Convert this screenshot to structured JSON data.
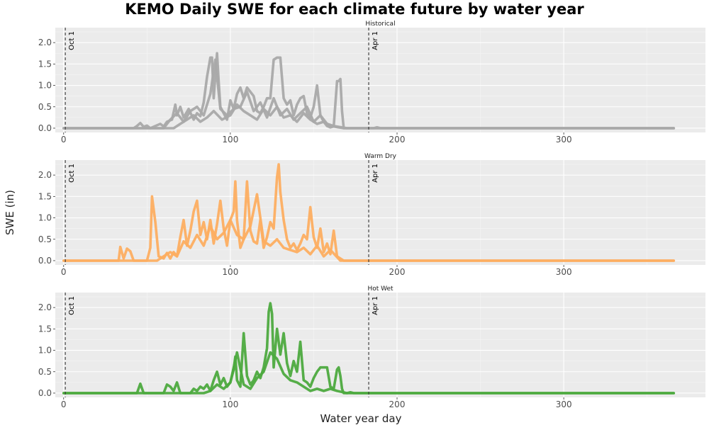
{
  "chart_data": {
    "type": "line",
    "title": "KEMO Daily SWE for each climate future by water year",
    "xlabel": "Water year day",
    "ylabel": "SWE (in)",
    "xlim": [
      -5,
      385
    ],
    "ylim": [
      -0.1,
      2.35
    ],
    "x_ticks": [
      0,
      100,
      200,
      300
    ],
    "y_ticks": [
      0.0,
      0.5,
      1.0,
      1.5,
      2.0
    ],
    "x_tick_labels": [
      "0",
      "100",
      "200",
      "300"
    ],
    "y_tick_labels": [
      "0.0",
      "0.5",
      "1.0",
      "1.5",
      "2.0"
    ],
    "grid": true,
    "reference_lines": [
      {
        "label": "Oct 1",
        "x": 1
      },
      {
        "label": "Apr 1",
        "x": 183
      }
    ],
    "panels": [
      {
        "name": "Historical",
        "color": "#a9a9a9",
        "series": [
          {
            "x": [
              0,
              42,
              44,
              46,
              48,
              50,
              52,
              58,
              60,
              62,
              65,
              67,
              68,
              70,
              72,
              75,
              78,
              80,
              82,
              84,
              86,
              88,
              89,
              90,
              92,
              93,
              94,
              96,
              98,
              100,
              102,
              104,
              106,
              108,
              110,
              112,
              114,
              116,
              118,
              120,
              122,
              124,
              126,
              128,
              130,
              132,
              134,
              136,
              138,
              140,
              142,
              144,
              146,
              148,
              150,
              152,
              154,
              156,
              158,
              160,
              162,
              164,
              165,
              166,
              167,
              168,
              170,
              174,
              178,
              186,
              188,
              190,
              366
            ],
            "y": [
              0,
              0,
              0.05,
              0.12,
              0.03,
              0.06,
              0,
              0.1,
              0.04,
              0.15,
              0.2,
              0.55,
              0.3,
              0.5,
              0.25,
              0.45,
              0.2,
              0.35,
              0.28,
              0.6,
              1.2,
              1.65,
              1.65,
              0.7,
              1.75,
              1.1,
              0.5,
              0.35,
              0.2,
              0.65,
              0.45,
              0.8,
              0.95,
              0.7,
              0.95,
              0.85,
              0.75,
              0.4,
              0.35,
              0.5,
              0.7,
              0.7,
              1.6,
              1.65,
              1.65,
              0.7,
              0.55,
              0.65,
              0.3,
              0.55,
              0.7,
              0.75,
              0.35,
              0.25,
              0.5,
              1.0,
              0.3,
              0.15,
              0.05,
              0.02,
              0.04,
              1.1,
              1.1,
              1.15,
              0.4,
              0,
              0,
              0,
              0,
              0,
              0.02,
              0,
              0
            ]
          },
          {
            "x": [
              0,
              60,
              64,
              68,
              72,
              76,
              80,
              84,
              88,
              91,
              94,
              98,
              102,
              106,
              110,
              114,
              118,
              122,
              126,
              130,
              134,
              138,
              142,
              146,
              150,
              154,
              158,
              162,
              170,
              366
            ],
            "y": [
              0,
              0,
              0.2,
              0.35,
              0.15,
              0.4,
              0.5,
              0.3,
              0.8,
              1.6,
              0.45,
              0.3,
              0.45,
              0.5,
              0.85,
              0.4,
              0.6,
              0.25,
              0.7,
              0.3,
              0.45,
              0.2,
              0.35,
              0.5,
              0.15,
              0.3,
              0.1,
              0.05,
              0,
              0
            ]
          },
          {
            "x": [
              0,
              66,
              70,
              74,
              78,
              82,
              86,
              90,
              95,
              100,
              104,
              108,
              112,
              116,
              120,
              124,
              128,
              132,
              136,
              140,
              144,
              148,
              152,
              156,
              160,
              168,
              366
            ],
            "y": [
              0,
              0,
              0.1,
              0.2,
              0.3,
              0.15,
              0.25,
              0.4,
              0.2,
              0.3,
              0.55,
              0.4,
              0.3,
              0.2,
              0.45,
              0.3,
              0.5,
              0.25,
              0.3,
              0.15,
              0.35,
              0.2,
              0.1,
              0.15,
              0.05,
              0,
              0
            ]
          }
        ]
      },
      {
        "name": "Warm Dry",
        "color": "#fdae61",
        "series": [
          {
            "x": [
              0,
              33,
              34,
              36,
              38,
              40,
              42,
              50,
              52,
              53,
              55,
              57,
              60,
              62,
              64,
              66,
              68,
              70,
              72,
              74,
              76,
              78,
              80,
              82,
              84,
              86,
              88,
              90,
              92,
              94,
              96,
              98,
              100,
              102,
              103,
              104,
              106,
              108,
              110,
              112,
              114,
              116,
              118,
              120,
              122,
              124,
              126,
              128,
              129,
              130,
              132,
              134,
              136,
              138,
              140,
              142,
              144,
              146,
              148,
              150,
              152,
              154,
              156,
              158,
              160,
              162,
              164,
              168,
              366
            ],
            "y": [
              0,
              0,
              0.32,
              0.05,
              0.28,
              0.22,
              0,
              0,
              0.3,
              1.5,
              0.9,
              0.1,
              0.05,
              0.18,
              0.05,
              0.2,
              0.1,
              0.55,
              0.95,
              0.35,
              0.7,
              1.15,
              1.4,
              0.6,
              0.9,
              0.5,
              0.95,
              0.4,
              0.85,
              1.4,
              0.75,
              0.35,
              0.95,
              1.15,
              1.85,
              0.95,
              0.3,
              0.5,
              1.85,
              0.7,
              0.45,
              0.4,
              0.95,
              0.3,
              0.55,
              0.9,
              0.75,
              1.95,
              2.25,
              1.6,
              0.95,
              0.5,
              0.3,
              0.4,
              0.25,
              0.4,
              0.6,
              0.5,
              1.25,
              0.55,
              0.3,
              0.75,
              0.2,
              0.4,
              0.15,
              0.7,
              0.1,
              0,
              0
            ]
          },
          {
            "x": [
              0,
              56,
              60,
              64,
              68,
              72,
              76,
              80,
              84,
              88,
              92,
              96,
              100,
              104,
              108,
              112,
              116,
              120,
              124,
              128,
              132,
              136,
              140,
              144,
              148,
              152,
              156,
              160,
              166,
              366
            ],
            "y": [
              0,
              0,
              0.1,
              0.2,
              0.1,
              0.45,
              0.3,
              0.6,
              0.35,
              0.8,
              0.5,
              0.65,
              0.95,
              0.6,
              0.5,
              0.8,
              1.55,
              0.45,
              0.35,
              0.5,
              0.3,
              0.25,
              0.2,
              0.3,
              0.15,
              0.35,
              0.1,
              0.25,
              0,
              0
            ]
          }
        ]
      },
      {
        "name": "Hot Wet",
        "color": "#4daa3f",
        "series": [
          {
            "x": [
              0,
              44,
              46,
              48,
              60,
              62,
              64,
              66,
              68,
              70,
              76,
              78,
              80,
              82,
              84,
              86,
              88,
              90,
              92,
              94,
              96,
              98,
              100,
              102,
              103,
              104,
              106,
              108,
              110,
              112,
              114,
              116,
              118,
              120,
              122,
              123,
              124,
              125,
              126,
              128,
              130,
              132,
              134,
              136,
              138,
              140,
              142,
              144,
              146,
              148,
              150,
              152,
              154,
              156,
              158,
              160,
              162,
              164,
              165,
              166,
              167,
              168,
              170,
              172,
              174,
              176,
              366
            ],
            "y": [
              0,
              0,
              0.22,
              0,
              0,
              0.2,
              0.15,
              0.05,
              0.25,
              0,
              0,
              0.1,
              0.05,
              0.15,
              0.1,
              0.2,
              0.05,
              0.3,
              0.5,
              0.2,
              0.35,
              0.15,
              0.25,
              0.55,
              0.85,
              0.3,
              0.15,
              1.4,
              0.4,
              0.2,
              0.3,
              0.5,
              0.35,
              0.6,
              1.05,
              1.9,
              2.1,
              1.85,
              0.6,
              1.5,
              0.9,
              1.4,
              0.7,
              0.4,
              0.75,
              0.5,
              1.2,
              0.3,
              0.25,
              0.15,
              0.35,
              0.5,
              0.6,
              0.6,
              0.6,
              0.15,
              0.1,
              0.55,
              0.6,
              0.4,
              0.1,
              0,
              0,
              0.02,
              0,
              0,
              0
            ]
          },
          {
            "x": [
              0,
              84,
              88,
              92,
              96,
              100,
              104,
              108,
              112,
              116,
              120,
              124,
              128,
              132,
              136,
              140,
              144,
              148,
              152,
              156,
              160,
              164,
              170,
              366
            ],
            "y": [
              0,
              0,
              0.05,
              0.2,
              0.1,
              0.25,
              0.95,
              0.2,
              0.1,
              0.35,
              0.5,
              0.95,
              0.8,
              0.45,
              0.3,
              0.25,
              0.15,
              0.05,
              0.1,
              0.05,
              0.1,
              0.05,
              0,
              0
            ]
          }
        ]
      }
    ]
  }
}
